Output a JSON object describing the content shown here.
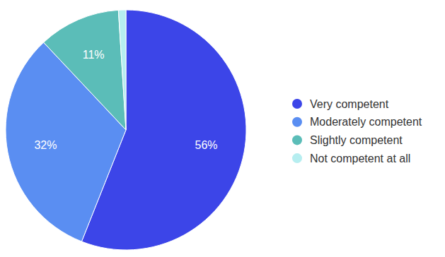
{
  "chart_data": {
    "type": "pie",
    "categories": [
      "Very competent",
      "Moderately competent",
      "Slightly competent",
      "Not competent at all"
    ],
    "values": [
      56,
      32,
      11,
      1
    ],
    "value_labels": [
      "56%",
      "32%",
      "11%",
      null
    ],
    "colors": [
      "#3c45e8",
      "#5a8ef2",
      "#5bbdb8",
      "#b6eef0"
    ],
    "data_labels": true,
    "legend": "right"
  }
}
